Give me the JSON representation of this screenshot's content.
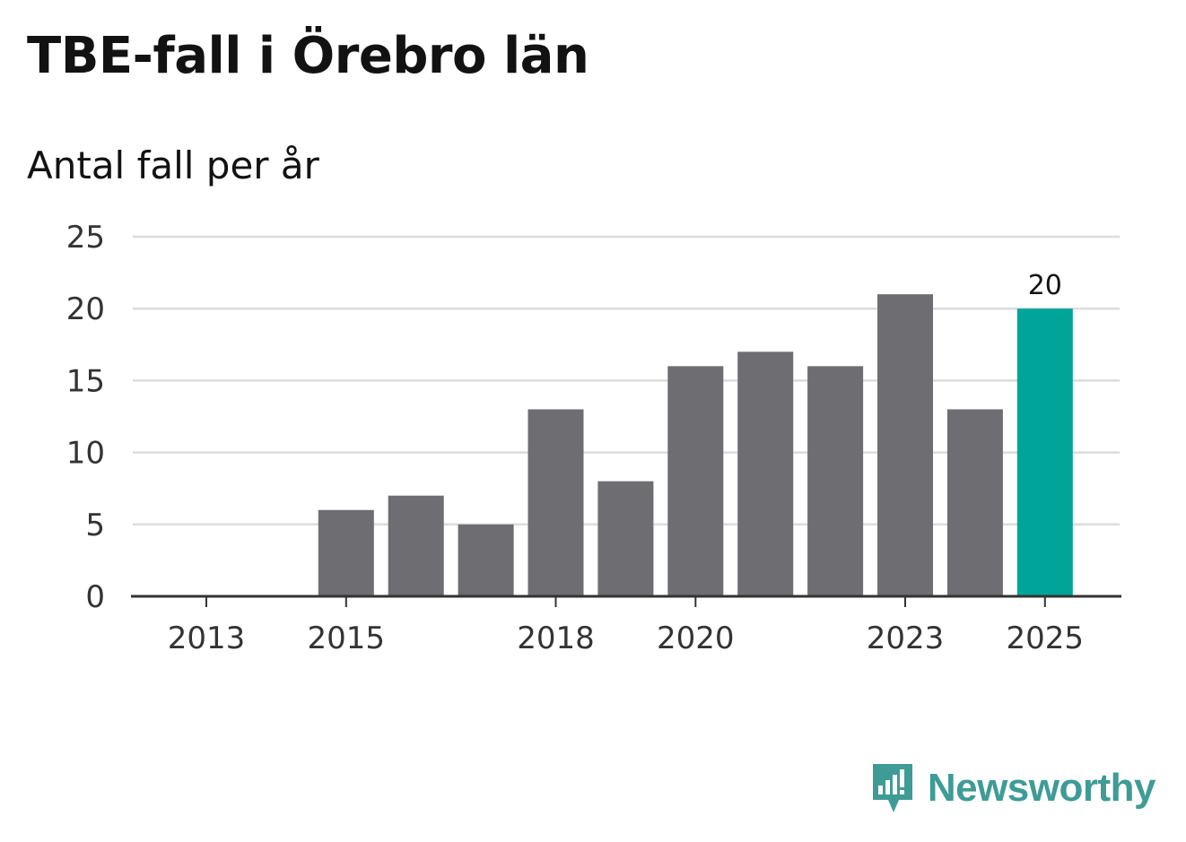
{
  "title": "TBE-fall i Örebro län",
  "subtitle": "Antal fall per år",
  "brand": {
    "name": "Newsworthy",
    "icon": "newsworthy-logo-icon"
  },
  "colors": {
    "bar": "#6e6d72",
    "highlight": "#00a499",
    "grid": "#dcdcdc",
    "axis": "#333333"
  },
  "chart_data": {
    "type": "bar",
    "title": "TBE-fall i Örebro län",
    "ylabel": "Antal fall per år",
    "xlabel": "",
    "categories": [
      "2013",
      "2014",
      "2015",
      "2016",
      "2017",
      "2018",
      "2019",
      "2020",
      "2021",
      "2022",
      "2023",
      "2024",
      "2025"
    ],
    "values": [
      0,
      0,
      6,
      7,
      5,
      13,
      8,
      16,
      17,
      16,
      21,
      13,
      20
    ],
    "highlight_index": 12,
    "data_labels": [
      {
        "category": "2025",
        "text": "20"
      }
    ],
    "x_tick_labels": [
      "2013",
      "2015",
      "2018",
      "2020",
      "2023",
      "2025"
    ],
    "y_ticks": [
      0,
      5,
      10,
      15,
      20,
      25
    ],
    "ylim": [
      0,
      25
    ],
    "grid": true,
    "legend": "none"
  }
}
